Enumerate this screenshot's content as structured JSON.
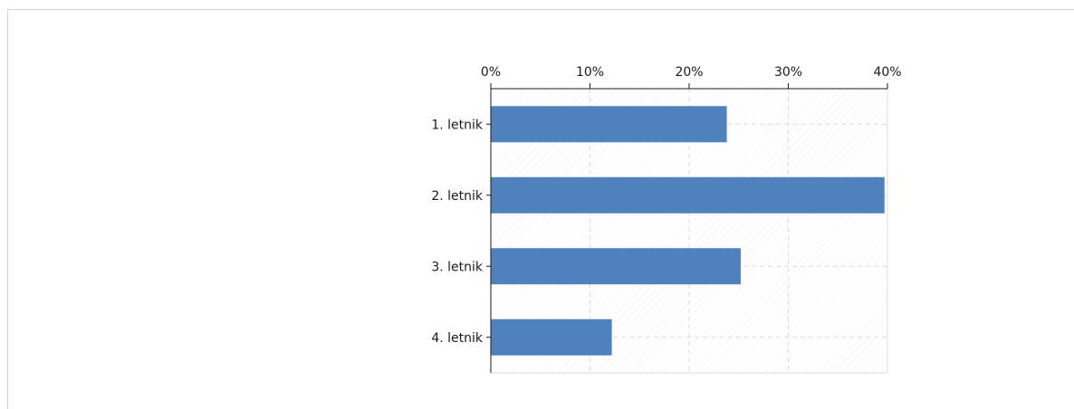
{
  "chart_data": {
    "type": "bar",
    "orientation": "horizontal",
    "categories": [
      "1. letnik",
      "2. letnik",
      "3. letnik",
      "4. letnik"
    ],
    "values": [
      23.8,
      39.7,
      25.2,
      12.2
    ],
    "xlim": [
      0,
      40
    ],
    "x_ticks": [
      "0%",
      "10%",
      "20%",
      "30%",
      "40%"
    ],
    "title": "",
    "xlabel": "",
    "ylabel": "",
    "grid": true,
    "legend": "none",
    "bar_color": "#4f81bd"
  }
}
